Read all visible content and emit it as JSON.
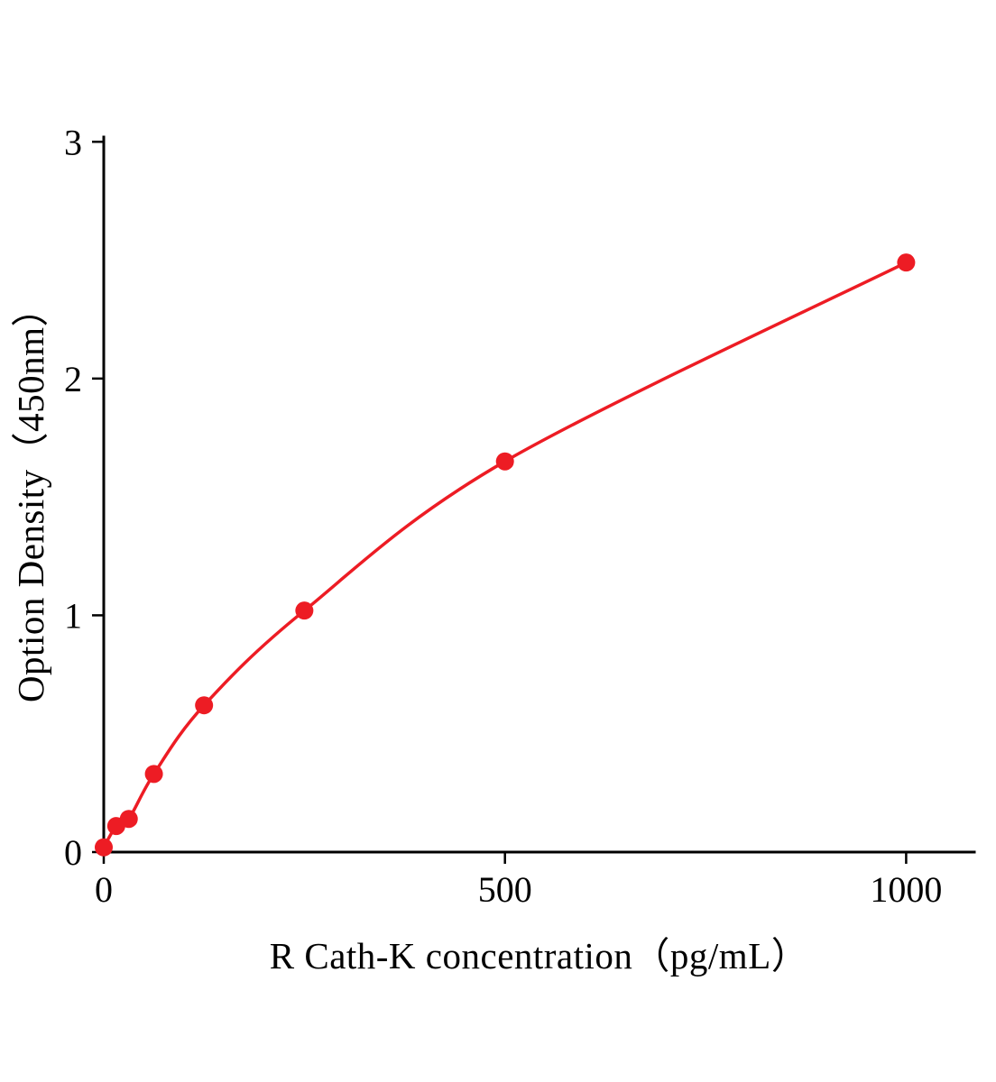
{
  "page": {
    "background_color": "#ffffff"
  },
  "chart_data": {
    "type": "line",
    "title": "",
    "xlabel": "R Cath-K concentration（pg/mL）",
    "ylabel": "Option Density（450nm）",
    "x": [
      0,
      15.6,
      31.2,
      62.5,
      125,
      250,
      500,
      1000
    ],
    "y": [
      0.02,
      0.11,
      0.14,
      0.33,
      0.62,
      1.02,
      1.65,
      2.49
    ],
    "xlim": [
      0,
      1085
    ],
    "ylim": [
      0,
      3.02
    ],
    "x_ticks": [
      {
        "value": 0,
        "label": "0"
      },
      {
        "value": 500,
        "label": "500"
      },
      {
        "value": 1000,
        "label": "1000"
      }
    ],
    "y_ticks": [
      {
        "value": 0,
        "label": "0"
      },
      {
        "value": 1,
        "label": "1"
      },
      {
        "value": 2,
        "label": "2"
      },
      {
        "value": 3,
        "label": "3"
      }
    ],
    "grid": false,
    "legend": null,
    "line_color": "#ed1c24",
    "marker_color": "#ed1c24",
    "marker_radius": 10,
    "line_width": 3.5,
    "axis_color": "#000000",
    "axis_width": 3
  }
}
